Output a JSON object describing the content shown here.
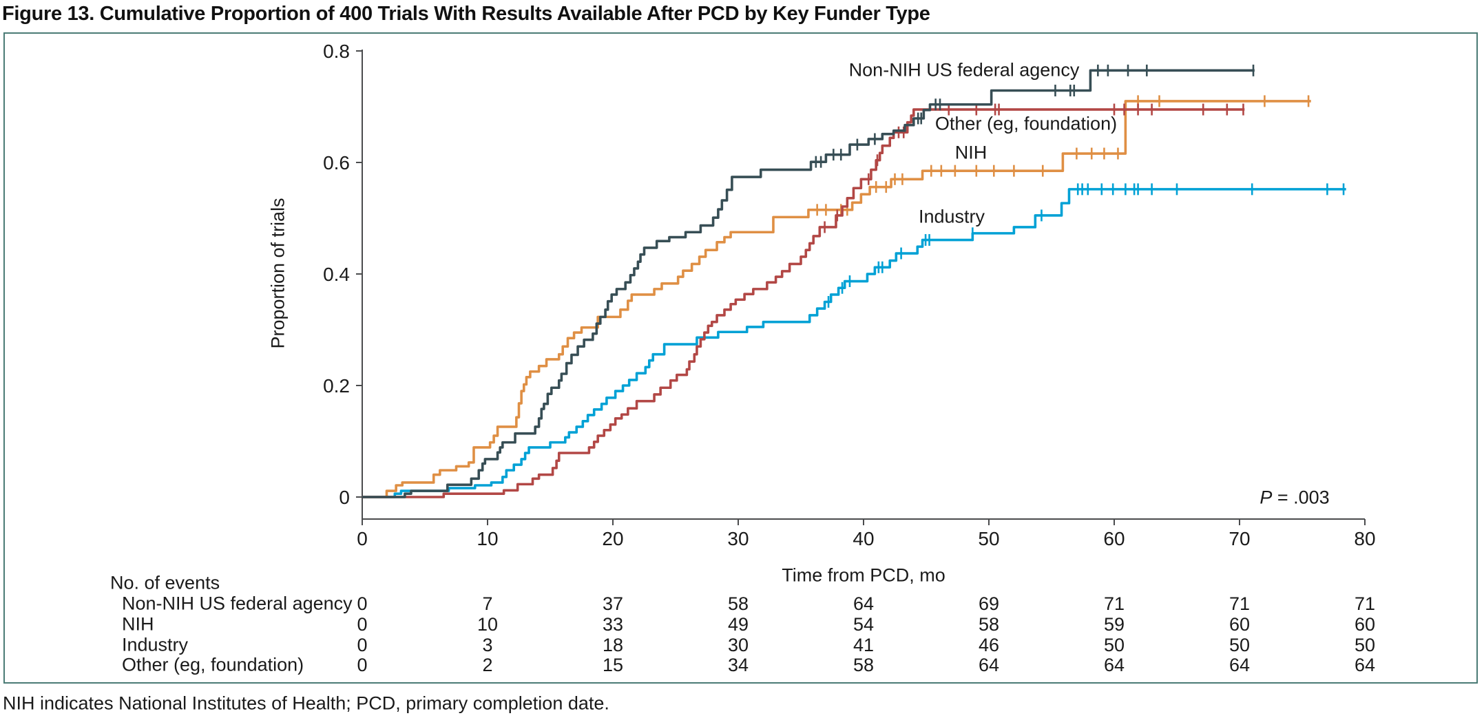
{
  "title": "Figure 13. Cumulative Proportion of 400 Trials With Results Available After PCD by Key Funder Type",
  "footnote": "NIH indicates National Institutes of Health; PCD, primary completion date.",
  "annotation": {
    "p_symbol": "P",
    "p_rest": " = .003"
  },
  "axes": {
    "ylabel": "Proportion of trials",
    "xlabel": "Time from PCD, mo",
    "xticks": [
      0,
      10,
      20,
      30,
      40,
      50,
      60,
      70,
      80
    ],
    "yticks": [
      0,
      0.2,
      0.4,
      0.6,
      0.8
    ],
    "ytick_labels": [
      "0",
      "0.2",
      "0.4",
      "0.6",
      "0.8"
    ]
  },
  "chart_data": {
    "type": "line",
    "subtype": "kaplan-meier-step",
    "title": "Cumulative Proportion of 400 Trials With Results Available After PCD by Key Funder Type",
    "xlabel": "Time from PCD, mo",
    "ylabel": "Proportion of trials",
    "xlim": [
      0,
      80
    ],
    "ylim": [
      0,
      0.8
    ],
    "grid": false,
    "legend_position": "inline-labels",
    "p_value_annotation": "P = .003",
    "series": [
      {
        "name": "Industry",
        "label": "Industry",
        "color": "#00A1D5",
        "end": 78.5,
        "points": [
          [
            2.6,
            0.006
          ],
          [
            3.1,
            0.011
          ],
          [
            6.9,
            0.016
          ],
          [
            9,
            0.021
          ],
          [
            10.3,
            0.026
          ],
          [
            11.2,
            0.036
          ],
          [
            11.5,
            0.048
          ],
          [
            12.1,
            0.058
          ],
          [
            12.7,
            0.068
          ],
          [
            13,
            0.079
          ],
          [
            13.3,
            0.089
          ],
          [
            15,
            0.098
          ],
          [
            16.2,
            0.107
          ],
          [
            16.5,
            0.116
          ],
          [
            17.1,
            0.126
          ],
          [
            17.6,
            0.136
          ],
          [
            18,
            0.147
          ],
          [
            18.5,
            0.157
          ],
          [
            19.1,
            0.167
          ],
          [
            19.5,
            0.178
          ],
          [
            20.2,
            0.19
          ],
          [
            20.8,
            0.2
          ],
          [
            21.3,
            0.21
          ],
          [
            21.9,
            0.222
          ],
          [
            22.6,
            0.233
          ],
          [
            22.9,
            0.245
          ],
          [
            23.2,
            0.256
          ],
          [
            24.1,
            0.274
          ],
          [
            26.7,
            0.286
          ],
          [
            28.4,
            0.296
          ],
          [
            30.7,
            0.305
          ],
          [
            32,
            0.314
          ],
          [
            35.7,
            0.326
          ],
          [
            36.3,
            0.338
          ],
          [
            36.9,
            0.35
          ],
          [
            37.4,
            0.363
          ],
          [
            38,
            0.375
          ],
          [
            38.5,
            0.387
          ],
          [
            40.3,
            0.4
          ],
          [
            40.9,
            0.412
          ],
          [
            42.1,
            0.424
          ],
          [
            42.6,
            0.437
          ],
          [
            44.3,
            0.449
          ],
          [
            44.7,
            0.461
          ],
          [
            48.7,
            0.473
          ],
          [
            52,
            0.484
          ],
          [
            53.7,
            0.505
          ],
          [
            55.8,
            0.527
          ],
          [
            56.4,
            0.552
          ]
        ],
        "censors": [
          37.2,
          38.3,
          38.9,
          41.2,
          41.5,
          43,
          44.95,
          45.25,
          48.7,
          54.2,
          57.1,
          57.45,
          57.9,
          59,
          59.9,
          60.9,
          61.6,
          61.9,
          63,
          65,
          71,
          77,
          78.3
        ]
      },
      {
        "name": "NIH",
        "label": "NIH",
        "color": "#DF8F44",
        "end": 75.7,
        "points": [
          [
            1.95,
            0.011
          ],
          [
            2.7,
            0.021
          ],
          [
            3.2,
            0.026
          ],
          [
            5.7,
            0.04
          ],
          [
            6.2,
            0.048
          ],
          [
            7.5,
            0.055
          ],
          [
            8.5,
            0.062
          ],
          [
            8.9,
            0.089
          ],
          [
            10.2,
            0.098
          ],
          [
            10.5,
            0.11
          ],
          [
            10.8,
            0.126
          ],
          [
            12.3,
            0.143
          ],
          [
            12.5,
            0.168
          ],
          [
            12.7,
            0.19
          ],
          [
            12.9,
            0.202
          ],
          [
            13.1,
            0.215
          ],
          [
            13.4,
            0.225
          ],
          [
            14.1,
            0.235
          ],
          [
            14.7,
            0.247
          ],
          [
            15.7,
            0.256
          ],
          [
            16,
            0.27
          ],
          [
            16.4,
            0.285
          ],
          [
            16.9,
            0.295
          ],
          [
            17.5,
            0.304
          ],
          [
            18.8,
            0.323
          ],
          [
            20.6,
            0.336
          ],
          [
            21.2,
            0.352
          ],
          [
            21.5,
            0.363
          ],
          [
            23.3,
            0.373
          ],
          [
            23.9,
            0.383
          ],
          [
            25.2,
            0.395
          ],
          [
            25.6,
            0.406
          ],
          [
            26.3,
            0.418
          ],
          [
            26.9,
            0.431
          ],
          [
            27.4,
            0.443
          ],
          [
            28.3,
            0.457
          ],
          [
            28.9,
            0.466
          ],
          [
            29.4,
            0.475
          ],
          [
            32.8,
            0.502
          ],
          [
            35.6,
            0.515
          ],
          [
            39.1,
            0.528
          ],
          [
            39.8,
            0.543
          ],
          [
            40.5,
            0.556
          ],
          [
            42.2,
            0.57
          ],
          [
            44.7,
            0.585
          ],
          [
            55.9,
            0.616
          ],
          [
            60.9,
            0.71
          ]
        ],
        "censors": [
          36.3,
          37,
          38.2,
          38.7,
          41,
          41.8,
          42.5,
          43.1,
          45.4,
          46.2,
          47.3,
          49,
          50.4,
          52,
          54.3,
          57,
          58.2,
          59.2,
          60.3,
          61.9,
          63.6,
          72,
          75.5
        ]
      },
      {
        "name": "Other (eg, foundation)",
        "label": "Other (eg, foundation)",
        "color": "#B24745",
        "end": 70.4,
        "points": [
          [
            6.5,
            0.006
          ],
          [
            11.3,
            0.012
          ],
          [
            12.4,
            0.023
          ],
          [
            13.6,
            0.033
          ],
          [
            14.1,
            0.04
          ],
          [
            15.2,
            0.052
          ],
          [
            15.5,
            0.065
          ],
          [
            15.7,
            0.079
          ],
          [
            18.1,
            0.089
          ],
          [
            18.5,
            0.099
          ],
          [
            18.8,
            0.11
          ],
          [
            19.3,
            0.12
          ],
          [
            19.8,
            0.13
          ],
          [
            20.2,
            0.141
          ],
          [
            20.7,
            0.148
          ],
          [
            21.2,
            0.159
          ],
          [
            21.9,
            0.172
          ],
          [
            23.3,
            0.184
          ],
          [
            23.8,
            0.196
          ],
          [
            24.6,
            0.209
          ],
          [
            25.1,
            0.219
          ],
          [
            25.9,
            0.229
          ],
          [
            26.1,
            0.243
          ],
          [
            26.5,
            0.256
          ],
          [
            26.7,
            0.27
          ],
          [
            27,
            0.283
          ],
          [
            27.3,
            0.295
          ],
          [
            27.6,
            0.307
          ],
          [
            27.9,
            0.314
          ],
          [
            28.3,
            0.326
          ],
          [
            28.9,
            0.336
          ],
          [
            29.4,
            0.346
          ],
          [
            29.8,
            0.354
          ],
          [
            30.5,
            0.364
          ],
          [
            31.2,
            0.373
          ],
          [
            32.3,
            0.385
          ],
          [
            33,
            0.395
          ],
          [
            33.5,
            0.405
          ],
          [
            34.1,
            0.418
          ],
          [
            35,
            0.431
          ],
          [
            35.4,
            0.443
          ],
          [
            35.7,
            0.455
          ],
          [
            36,
            0.468
          ],
          [
            36.5,
            0.484
          ],
          [
            37.8,
            0.505
          ],
          [
            38.3,
            0.521
          ],
          [
            38.7,
            0.536
          ],
          [
            39.2,
            0.554
          ],
          [
            39.8,
            0.57
          ],
          [
            40.6,
            0.587
          ],
          [
            41,
            0.604
          ],
          [
            41.3,
            0.617
          ],
          [
            41.5,
            0.63
          ],
          [
            42.1,
            0.644
          ],
          [
            42.4,
            0.654
          ],
          [
            43.5,
            0.672
          ],
          [
            43.8,
            0.684
          ],
          [
            44,
            0.695
          ]
        ],
        "censors": [
          36.9,
          37.9,
          40.4,
          41.1,
          42.8,
          43.2,
          46.8,
          49,
          50.5,
          50.8,
          60,
          60.8,
          61.9,
          63,
          67.1,
          69,
          70.3
        ]
      },
      {
        "name": "Non-NIH US federal agency",
        "label": "Non-NIH US federal agency",
        "color": "#374E55",
        "end": 71.2,
        "points": [
          [
            3.4,
            0.006
          ],
          [
            3.9,
            0.011
          ],
          [
            6.8,
            0.022
          ],
          [
            8.7,
            0.033
          ],
          [
            9.3,
            0.048
          ],
          [
            9.6,
            0.06
          ],
          [
            9.8,
            0.068
          ],
          [
            10.8,
            0.08
          ],
          [
            11,
            0.089
          ],
          [
            11.2,
            0.098
          ],
          [
            12.2,
            0.114
          ],
          [
            13.8,
            0.126
          ],
          [
            14.1,
            0.141
          ],
          [
            14.3,
            0.158
          ],
          [
            14.5,
            0.167
          ],
          [
            14.8,
            0.185
          ],
          [
            15.1,
            0.196
          ],
          [
            15.7,
            0.209
          ],
          [
            15.9,
            0.221
          ],
          [
            16.3,
            0.24
          ],
          [
            16.7,
            0.255
          ],
          [
            17.2,
            0.27
          ],
          [
            17.7,
            0.282
          ],
          [
            18.4,
            0.293
          ],
          [
            18.7,
            0.311
          ],
          [
            19,
            0.323
          ],
          [
            19.4,
            0.336
          ],
          [
            19.6,
            0.351
          ],
          [
            19.9,
            0.363
          ],
          [
            20.3,
            0.373
          ],
          [
            21,
            0.385
          ],
          [
            21.4,
            0.398
          ],
          [
            21.7,
            0.41
          ],
          [
            22,
            0.422
          ],
          [
            22.2,
            0.435
          ],
          [
            22.5,
            0.447
          ],
          [
            23.5,
            0.459
          ],
          [
            24.5,
            0.466
          ],
          [
            25.8,
            0.475
          ],
          [
            27,
            0.487
          ],
          [
            28,
            0.501
          ],
          [
            28.4,
            0.516
          ],
          [
            28.7,
            0.532
          ],
          [
            29.1,
            0.551
          ],
          [
            29.5,
            0.574
          ],
          [
            31.8,
            0.587
          ],
          [
            35.8,
            0.601
          ],
          [
            37,
            0.614
          ],
          [
            38.9,
            0.632
          ],
          [
            40.4,
            0.642
          ],
          [
            41.5,
            0.651
          ],
          [
            42.4,
            0.657
          ],
          [
            43.3,
            0.667
          ],
          [
            44,
            0.679
          ],
          [
            44.8,
            0.694
          ],
          [
            45.3,
            0.704
          ],
          [
            50.2,
            0.729
          ],
          [
            58.1,
            0.765
          ]
        ],
        "censors": [
          36.2,
          36.6,
          37.6,
          38.2,
          39.5,
          40.9,
          44.35,
          44.6,
          45.75,
          46.1,
          55.3,
          56.5,
          56.8,
          58.7,
          59.5,
          61.1,
          62.6,
          71.1
        ]
      }
    ]
  },
  "events_table": {
    "header": "No. of events",
    "time_points": [
      0,
      10,
      20,
      30,
      40,
      50,
      60,
      70,
      80
    ],
    "rows": [
      {
        "label": "Non-NIH US federal agency",
        "values": [
          0,
          7,
          37,
          58,
          64,
          69,
          71,
          71,
          71
        ]
      },
      {
        "label": "NIH",
        "values": [
          0,
          10,
          33,
          49,
          54,
          58,
          59,
          60,
          60
        ]
      },
      {
        "label": "Industry",
        "values": [
          0,
          3,
          18,
          30,
          41,
          46,
          50,
          50,
          50
        ]
      },
      {
        "label": "Other (eg, foundation)",
        "values": [
          0,
          2,
          15,
          34,
          58,
          64,
          64,
          64,
          64
        ]
      }
    ]
  },
  "colors": {
    "panel_border": "#4A7B75",
    "axis": "#4a4b4d",
    "text": "#1a1a1a",
    "non_nih": "#374E55",
    "nih": "#DF8F44",
    "industry": "#00A1D5",
    "other": "#B24745"
  }
}
